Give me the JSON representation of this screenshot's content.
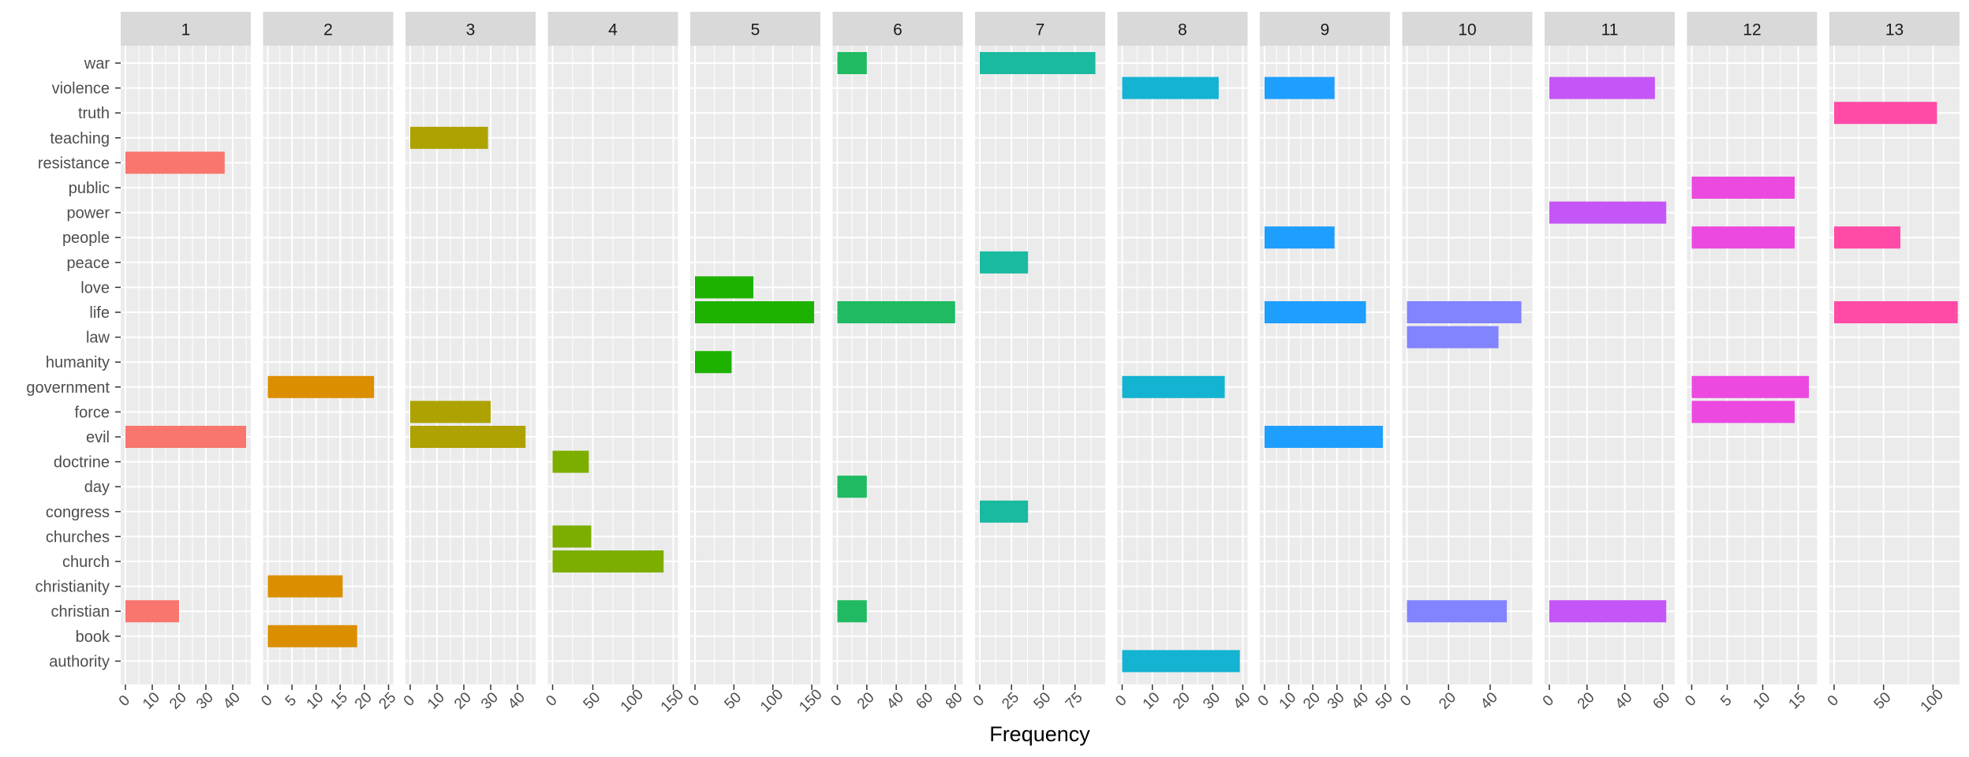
{
  "chart_data": {
    "type": "bar",
    "orientation": "horizontal",
    "facets": "wrap-by-group",
    "xlabel": "Frequency",
    "ylabel": "",
    "grid": true,
    "legend": "none",
    "panel_background": "#ebebeb",
    "strip_background": "#d9d9d9",
    "terms": [
      "authority",
      "book",
      "christian",
      "christianity",
      "church",
      "churches",
      "congress",
      "day",
      "doctrine",
      "evil",
      "force",
      "government",
      "humanity",
      "law",
      "life",
      "love",
      "peace",
      "people",
      "power",
      "public",
      "resistance",
      "teaching",
      "truth",
      "violence",
      "war"
    ],
    "panels": [
      {
        "label": "1",
        "color": "#F8766D",
        "xlim": [
          0,
          45
        ],
        "xticks": [
          0,
          10,
          20,
          30,
          40
        ],
        "tick_labels": [
          "0",
          "10",
          "20",
          "30",
          "40"
        ],
        "bars": [
          {
            "term": "resistance",
            "value": 37
          },
          {
            "term": "evil",
            "value": 45
          },
          {
            "term": "christian",
            "value": 20
          }
        ]
      },
      {
        "label": "2",
        "color": "#DB8E00",
        "xlim": [
          0,
          25
        ],
        "xticks": [
          0,
          5,
          10,
          15,
          20,
          25
        ],
        "tick_labels": [
          "0",
          "5",
          "10",
          "15",
          "20",
          "25"
        ],
        "bars": [
          {
            "term": "government",
            "value": 22
          },
          {
            "term": "christianity",
            "value": 15.5
          },
          {
            "term": "book",
            "value": 18.5
          }
        ]
      },
      {
        "label": "3",
        "color": "#AEA200",
        "xlim": [
          0,
          45
        ],
        "xticks": [
          0,
          10,
          20,
          30,
          40
        ],
        "tick_labels": [
          "0",
          "10",
          "20",
          "30",
          "40"
        ],
        "bars": [
          {
            "term": "teaching",
            "value": 29
          },
          {
            "term": "force",
            "value": 30
          },
          {
            "term": "evil",
            "value": 43
          }
        ]
      },
      {
        "label": "4",
        "color": "#64B200",
        "xlim": [
          0,
          150
        ],
        "xticks": [
          0,
          50,
          100,
          150
        ],
        "tick_labels": [
          "0",
          "50",
          "100",
          "150"
        ],
        "bars": [
          {
            "term": "doctrine",
            "value": 45
          },
          {
            "term": "churches",
            "value": 48
          },
          {
            "term": "church",
            "value": 138
          }
        ]
      },
      {
        "label": "5",
        "color": "#00BD5C",
        "xlim": [
          0,
          155
        ],
        "xticks": [
          0,
          50,
          100,
          150
        ],
        "tick_labels": [
          "0",
          "50",
          "100",
          "150"
        ],
        "bars": [
          {
            "term": "love",
            "value": 75
          },
          {
            "term": "life",
            "value": 153
          },
          {
            "term": "humanity",
            "value": 47
          }
        ]
      },
      {
        "label": "6",
        "color": "#00C1A7",
        "xlim": [
          0,
          82
        ],
        "xticks": [
          0,
          20,
          40,
          60,
          80
        ],
        "tick_labels": [
          "0",
          "20",
          "40",
          "60",
          "80"
        ],
        "bars": [
          {
            "term": "war",
            "value": 20
          },
          {
            "term": "life",
            "value": 80
          },
          {
            "term": "day",
            "value": 20
          },
          {
            "term": "christian",
            "value": 20
          }
        ]
      },
      {
        "label": "7",
        "color": "#00BADE",
        "xlim": [
          0,
          95
        ],
        "xticks": [
          0,
          25,
          50,
          75
        ],
        "tick_labels": [
          "0",
          "25",
          "50",
          "75"
        ],
        "bars": [
          {
            "term": "war",
            "value": 91
          },
          {
            "term": "peace",
            "value": 38
          },
          {
            "term": "congress",
            "value": 38
          }
        ]
      },
      {
        "label": "8",
        "color": "#00A6FF",
        "xlim": [
          0,
          40
        ],
        "xticks": [
          0,
          10,
          20,
          30,
          40
        ],
        "tick_labels": [
          "0",
          "10",
          "20",
          "30",
          "40"
        ],
        "bars": [
          {
            "term": "violence",
            "value": 32
          },
          {
            "term": "government",
            "value": 34
          },
          {
            "term": "authority",
            "value": 39
          }
        ]
      },
      {
        "label": "9",
        "color": "#B385FF",
        "xlim": [
          0,
          50
        ],
        "xticks": [
          0,
          10,
          20,
          30,
          40,
          50
        ],
        "tick_labels": [
          "0",
          "10",
          "20",
          "30",
          "40",
          "50"
        ],
        "bars": [
          {
            "term": "violence",
            "value": 29
          },
          {
            "term": "people",
            "value": 29
          },
          {
            "term": "life",
            "value": 42
          },
          {
            "term": "evil",
            "value": 49
          }
        ]
      },
      {
        "label": "10",
        "color": "#EF67EB",
        "xlim": [
          0,
          58
        ],
        "xticks": [
          0,
          20,
          40
        ],
        "tick_labels": [
          "0",
          "20",
          "40"
        ],
        "bars": [
          {
            "term": "life",
            "value": 55
          },
          {
            "term": "law",
            "value": 44
          },
          {
            "term": "christian",
            "value": 48
          }
        ]
      },
      {
        "label": "11",
        "color": "#FF63B6",
        "xlim": [
          0,
          64
        ],
        "xticks": [
          0,
          20,
          40,
          60
        ],
        "tick_labels": [
          "0",
          "20",
          "40",
          "60"
        ],
        "bars": [
          {
            "term": "violence",
            "value": 56
          },
          {
            "term": "power",
            "value": 62
          },
          {
            "term": "christian",
            "value": 62
          }
        ]
      },
      {
        "label": "12",
        "color": "#F8766D",
        "xlim": [
          0,
          17
        ],
        "xticks": [
          0,
          5,
          10,
          15
        ],
        "tick_labels": [
          "0",
          "5",
          "10",
          "15"
        ],
        "bars": [
          {
            "term": "public",
            "value": 14.5
          },
          {
            "term": "people",
            "value": 14.5
          },
          {
            "term": "government",
            "value": 16.5
          },
          {
            "term": "force",
            "value": 14.5
          }
        ]
      },
      {
        "label": "13",
        "color": "#FF63B6",
        "xlim": [
          0,
          122
        ],
        "xticks": [
          0,
          50,
          100
        ],
        "tick_labels": [
          "0",
          "50",
          "100"
        ],
        "bars": [
          {
            "term": "truth",
            "value": 104
          },
          {
            "term": "people",
            "value": 67
          },
          {
            "term": "life",
            "value": 125
          }
        ]
      }
    ],
    "palette": [
      "#F8766D",
      "#DB8E00",
      "#AEA200",
      "#7CAE00",
      "#1EB200",
      "#1FBA61",
      "#1ABAA0",
      "#14B3D1",
      "#1E9EFF",
      "#8183FF",
      "#C455F6",
      "#EB49E0",
      "#FF4BA6"
    ]
  }
}
